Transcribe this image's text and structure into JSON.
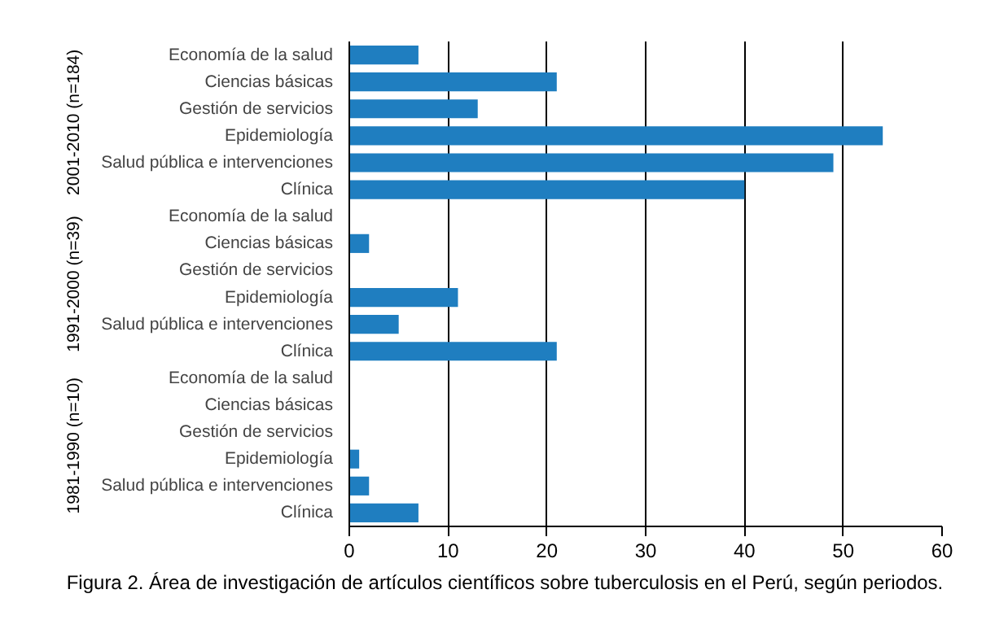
{
  "chart_data": {
    "type": "bar",
    "orientation": "horizontal",
    "title": "Figura 2. Área de investigación de artículos científicos sobre tuberculosis en el Perú, según periodos.",
    "categories": [
      "Economía de la salud",
      "Ciencias básicas",
      "Gestión de servicios",
      "Epidemiología",
      "Salud pública e intervenciones",
      "Clínica",
      "Economía de la salud",
      "Ciencias básicas",
      "Gestión de servicios",
      "Epidemiología",
      "Salud pública e intervenciones",
      "Clínica",
      "Economía de la salud",
      "Ciencias básicas",
      "Gestión de servicios",
      "Epidemiología",
      "Salud pública e intervenciones",
      "Clínica"
    ],
    "values": [
      7,
      21,
      13,
      54,
      49,
      40,
      0,
      2,
      0,
      11,
      5,
      21,
      0,
      0,
      0,
      1,
      2,
      7
    ],
    "color": "#1f7ec0",
    "xlim": [
      0,
      60
    ],
    "xticks": [
      0,
      10,
      20,
      30,
      40,
      50,
      60
    ],
    "grid": "x",
    "annotations": [
      "2001-2010 (n=184)",
      "1991-2000 (n=39)",
      "1981-1990 (n=10)"
    ]
  }
}
